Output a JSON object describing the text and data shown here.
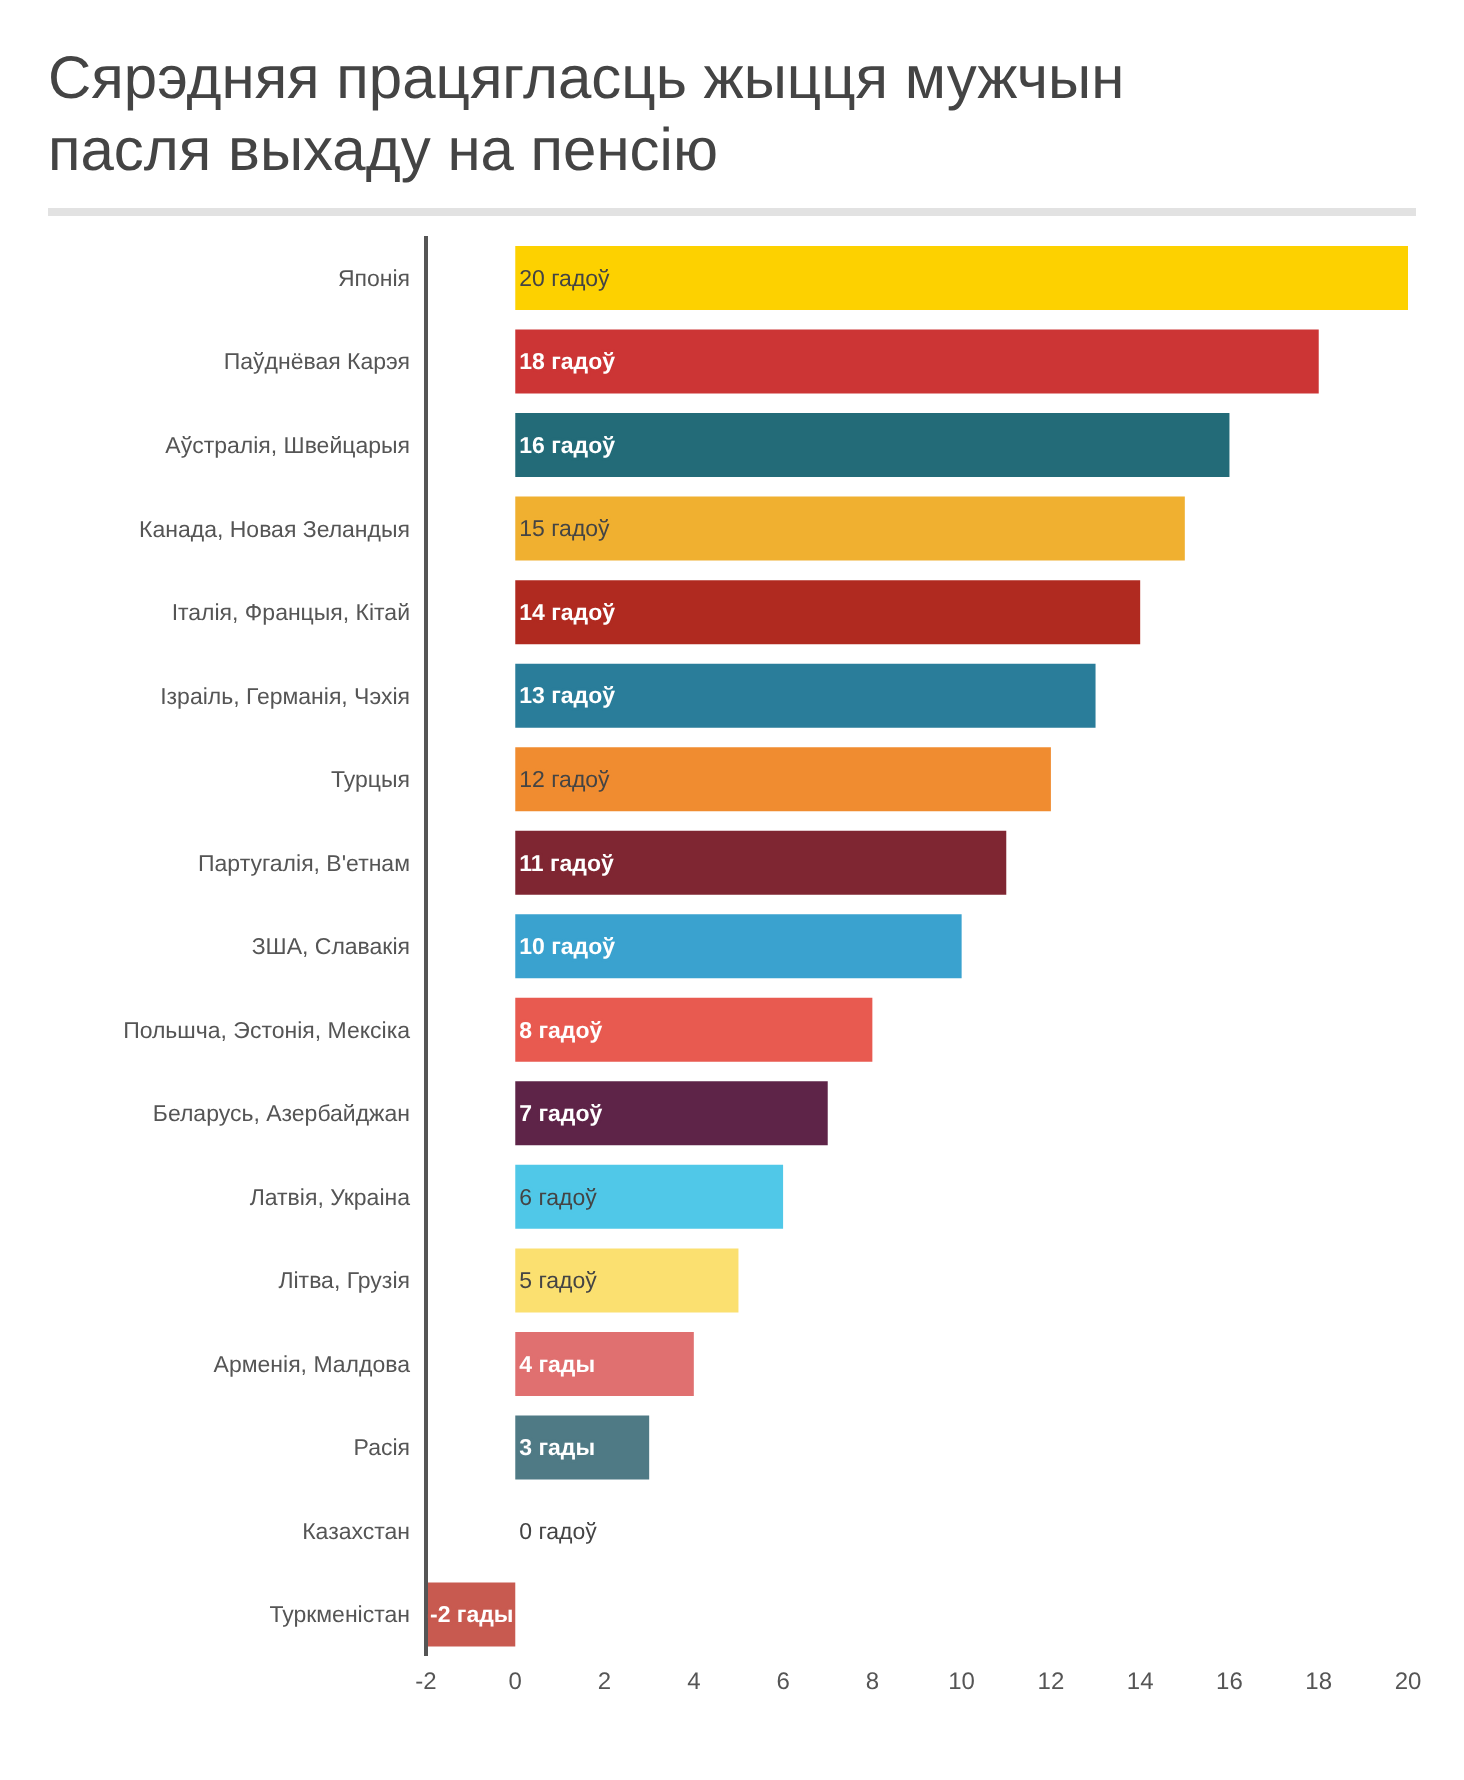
{
  "chart_data": {
    "type": "bar",
    "orientation": "horizontal",
    "title": "Сярэдняя працягласць жыцця мужчын пасля выхаду на пенсію",
    "categories": [
      "Японія",
      "Паўднёвая Карэя",
      "Аўстралія, Швейцарыя",
      "Канада, Новая Зеландыя",
      "Італія, Францыя, Кітай",
      "Ізраіль, Германія, Чэхія",
      "Турцыя",
      "Партугалія, В'етнам",
      "ЗША, Славакія",
      "Польшча, Эстонія, Мексіка",
      "Беларусь, Азербайджан",
      "Латвія, Украіна",
      "Літва, Грузія",
      "Арменія, Малдова",
      "Расія",
      "Казахстан",
      "Туркменістан"
    ],
    "values": [
      20,
      18,
      16,
      15,
      14,
      13,
      12,
      11,
      10,
      8,
      7,
      6,
      5,
      4,
      3,
      0,
      -2
    ],
    "value_labels": [
      "20 гадоў",
      "18 гадоў",
      "16 гадоў",
      "15 гадоў",
      "14 гадоў",
      "13 гадоў",
      "12 гадоў",
      "11 гадоў",
      "10 гадоў",
      "8 гадоў",
      "7 гадоў",
      "6 гадоў",
      "5 гадоў",
      "4 гады",
      "3 гады",
      "0 гадоў",
      "-2 гады"
    ],
    "colors": [
      "#fdd100",
      "#cc3535",
      "#236b78",
      "#f0b030",
      "#b02a20",
      "#2a7d9a",
      "#f08c30",
      "#7f2632",
      "#3aa2cf",
      "#e85a50",
      "#5e2448",
      "#50c8e8",
      "#fbe070",
      "#e07070",
      "#4f7a85",
      "#ffffff",
      "#c85a50"
    ],
    "xlim": [
      -2,
      20
    ],
    "xticks": [
      -2,
      0,
      2,
      4,
      6,
      8,
      10,
      12,
      14,
      16,
      18,
      20
    ]
  }
}
